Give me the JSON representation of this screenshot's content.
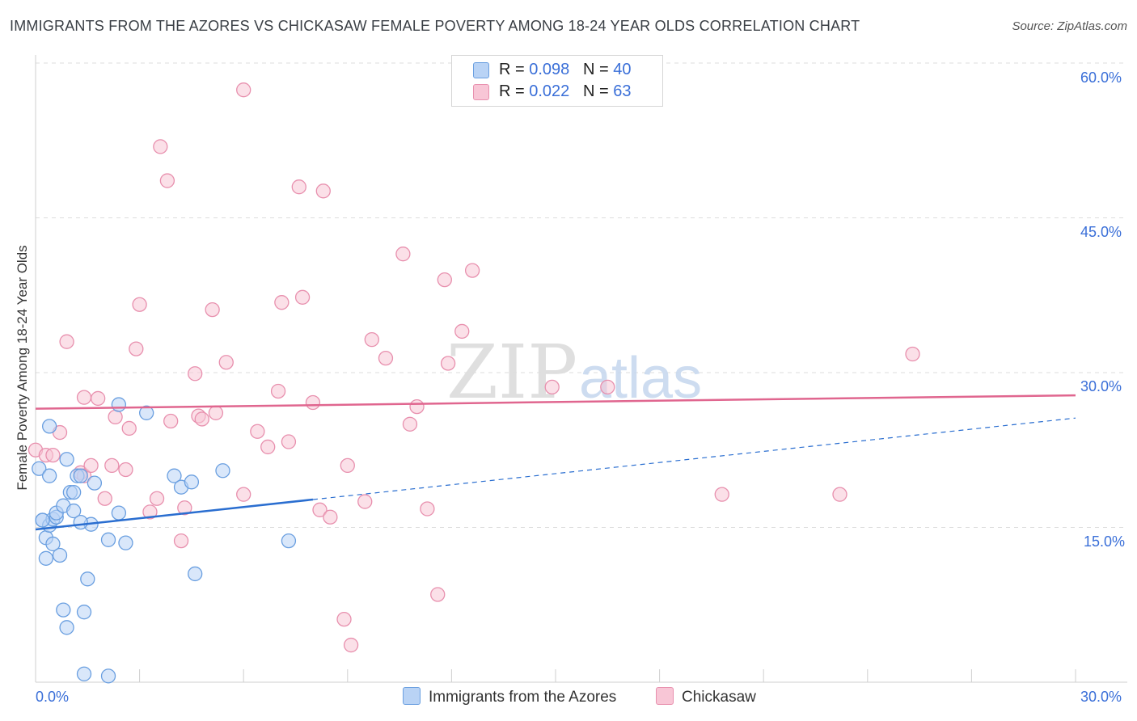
{
  "title": "IMMIGRANTS FROM THE AZORES VS CHICKASAW FEMALE POVERTY AMONG 18-24 YEAR OLDS CORRELATION CHART",
  "source": "Source: ZipAtlas.com",
  "watermark": {
    "zip": "ZIP",
    "atlas": "atlas"
  },
  "legend_top": {
    "rows": [
      {
        "r_label": "R = ",
        "r_value": "0.098",
        "n_label": "N = ",
        "n_value": "40"
      },
      {
        "r_label": "R = ",
        "r_value": "0.022",
        "n_label": "N = ",
        "n_value": "63"
      }
    ]
  },
  "colors": {
    "blue_fill": "#b9d3f5",
    "blue_stroke": "#6a9fe0",
    "blue_line": "#2a6ed0",
    "pink_fill": "#f8c6d6",
    "pink_stroke": "#e890ae",
    "pink_line": "#e0668f",
    "grid": "#dcdcdc",
    "tick_label": "#3a6fd8"
  },
  "chart_data": {
    "type": "scatter",
    "xlabel": "",
    "ylabel": "Female Poverty Among 18-24 Year Olds",
    "xlim": [
      0,
      30
    ],
    "ylim": [
      0,
      60
    ],
    "x_tick_labels": [
      "0.0%",
      "30.0%"
    ],
    "y_ticks": [
      15,
      30,
      45,
      60
    ],
    "y_tick_labels": [
      "15.0%",
      "30.0%",
      "45.0%",
      "60.0%"
    ],
    "grid": true,
    "series": [
      {
        "name": "Immigrants from the Azores",
        "r": 0.098,
        "n": 40,
        "trend": {
          "x": [
            0,
            8
          ],
          "y": [
            14.8,
            17.7
          ],
          "dashed_to": [
            30,
            25.6
          ]
        },
        "points": [
          [
            0.1,
            20.7
          ],
          [
            0.2,
            15.7
          ],
          [
            0.3,
            14.0
          ],
          [
            0.3,
            12.0
          ],
          [
            0.4,
            15.2
          ],
          [
            0.4,
            20.0
          ],
          [
            0.4,
            24.8
          ],
          [
            0.5,
            15.8
          ],
          [
            0.5,
            13.4
          ],
          [
            0.6,
            16.0
          ],
          [
            0.6,
            16.4
          ],
          [
            0.7,
            12.3
          ],
          [
            0.8,
            17.1
          ],
          [
            0.8,
            7.0
          ],
          [
            0.9,
            5.3
          ],
          [
            0.9,
            21.6
          ],
          [
            1.0,
            18.4
          ],
          [
            1.1,
            16.6
          ],
          [
            1.1,
            18.4
          ],
          [
            1.2,
            20.0
          ],
          [
            1.3,
            20.0
          ],
          [
            1.4,
            6.8
          ],
          [
            1.5,
            10.0
          ],
          [
            1.6,
            15.3
          ],
          [
            1.7,
            19.3
          ],
          [
            1.4,
            0.8
          ],
          [
            2.1,
            0.6
          ],
          [
            2.1,
            13.8
          ],
          [
            2.4,
            16.4
          ],
          [
            2.6,
            13.5
          ],
          [
            2.4,
            26.9
          ],
          [
            3.2,
            26.1
          ],
          [
            4.0,
            20.0
          ],
          [
            4.2,
            18.9
          ],
          [
            4.5,
            19.4
          ],
          [
            4.6,
            10.5
          ],
          [
            5.4,
            20.5
          ],
          [
            7.3,
            13.7
          ],
          [
            1.3,
            15.5
          ],
          [
            0.2,
            15.7
          ]
        ]
      },
      {
        "name": "Chickasaw",
        "r": 0.022,
        "n": 63,
        "trend": {
          "x": [
            0,
            30
          ],
          "y": [
            26.5,
            27.8
          ]
        },
        "points": [
          [
            0.0,
            22.5
          ],
          [
            0.3,
            22.0
          ],
          [
            0.5,
            22.0
          ],
          [
            0.7,
            24.2
          ],
          [
            0.9,
            33.0
          ],
          [
            1.3,
            20.3
          ],
          [
            1.4,
            20.0
          ],
          [
            1.4,
            27.6
          ],
          [
            1.6,
            21.0
          ],
          [
            1.8,
            27.5
          ],
          [
            2.0,
            17.8
          ],
          [
            2.2,
            21.0
          ],
          [
            2.3,
            25.7
          ],
          [
            2.6,
            20.6
          ],
          [
            2.7,
            24.6
          ],
          [
            2.9,
            32.3
          ],
          [
            3.0,
            36.6
          ],
          [
            3.3,
            16.5
          ],
          [
            3.5,
            17.8
          ],
          [
            3.6,
            51.9
          ],
          [
            3.8,
            48.6
          ],
          [
            3.9,
            25.3
          ],
          [
            4.2,
            13.7
          ],
          [
            4.3,
            16.9
          ],
          [
            4.6,
            29.9
          ],
          [
            4.7,
            25.8
          ],
          [
            4.8,
            25.5
          ],
          [
            5.1,
            36.1
          ],
          [
            5.2,
            26.1
          ],
          [
            5.5,
            31.0
          ],
          [
            6.0,
            57.4
          ],
          [
            6.0,
            18.2
          ],
          [
            6.4,
            24.3
          ],
          [
            6.7,
            22.8
          ],
          [
            7.0,
            28.2
          ],
          [
            7.1,
            36.8
          ],
          [
            7.3,
            23.3
          ],
          [
            7.6,
            48.0
          ],
          [
            7.7,
            37.3
          ],
          [
            8.0,
            27.1
          ],
          [
            8.2,
            16.7
          ],
          [
            8.3,
            47.6
          ],
          [
            8.5,
            16.0
          ],
          [
            8.9,
            6.1
          ],
          [
            9.0,
            21.0
          ],
          [
            9.1,
            3.6
          ],
          [
            9.5,
            17.5
          ],
          [
            9.7,
            33.2
          ],
          [
            10.1,
            31.4
          ],
          [
            10.6,
            41.5
          ],
          [
            10.8,
            25.0
          ],
          [
            11.0,
            26.7
          ],
          [
            11.3,
            16.8
          ],
          [
            11.6,
            8.5
          ],
          [
            11.8,
            39.0
          ],
          [
            11.9,
            30.9
          ],
          [
            12.3,
            34.0
          ],
          [
            12.6,
            39.9
          ],
          [
            14.9,
            28.6
          ],
          [
            16.5,
            28.6
          ],
          [
            19.8,
            18.2
          ],
          [
            23.2,
            18.2
          ],
          [
            25.3,
            31.8
          ]
        ]
      }
    ]
  }
}
